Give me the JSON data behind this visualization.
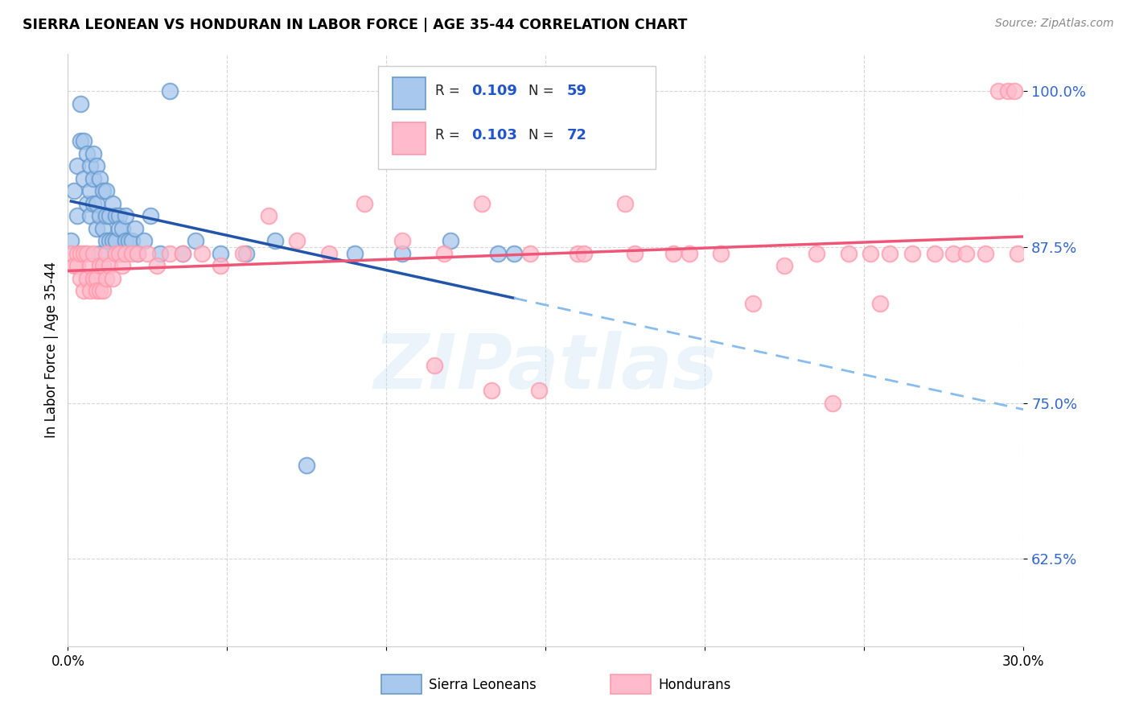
{
  "title": "SIERRA LEONEAN VS HONDURAN IN LABOR FORCE | AGE 35-44 CORRELATION CHART",
  "source": "Source: ZipAtlas.com",
  "ylabel": "In Labor Force | Age 35-44",
  "xlim": [
    0.0,
    0.3
  ],
  "ylim": [
    0.555,
    1.03
  ],
  "yticks": [
    0.625,
    0.75,
    0.875,
    1.0
  ],
  "ytick_labels": [
    "62.5%",
    "75.0%",
    "87.5%",
    "100.0%"
  ],
  "xticks": [
    0.0,
    0.05,
    0.1,
    0.15,
    0.2,
    0.25,
    0.3
  ],
  "xtick_labels": [
    "0.0%",
    "",
    "",
    "",
    "",
    "",
    "30.0%"
  ],
  "sl_R": 0.109,
  "sl_N": 59,
  "hn_R": 0.103,
  "hn_N": 72,
  "sl_color": "#6699CC",
  "hn_color": "#FF99AA",
  "sl_scatter_fill": "#A8C8EE",
  "hn_scatter_fill": "#FFBBCC",
  "trend_sl_color": "#2255AA",
  "trend_hn_color": "#EE5577",
  "dashed_color": "#88BBEE",
  "background": "#FFFFFF",
  "watermark": "ZIPatlas",
  "sl_x": [
    0.001,
    0.002,
    0.003,
    0.003,
    0.004,
    0.004,
    0.005,
    0.005,
    0.006,
    0.006,
    0.007,
    0.007,
    0.007,
    0.008,
    0.008,
    0.008,
    0.009,
    0.009,
    0.009,
    0.01,
    0.01,
    0.01,
    0.011,
    0.011,
    0.012,
    0.012,
    0.012,
    0.013,
    0.013,
    0.014,
    0.014,
    0.015,
    0.015,
    0.016,
    0.016,
    0.016,
    0.017,
    0.017,
    0.018,
    0.018,
    0.019,
    0.02,
    0.021,
    0.022,
    0.024,
    0.026,
    0.029,
    0.032,
    0.036,
    0.04,
    0.048,
    0.056,
    0.065,
    0.075,
    0.09,
    0.105,
    0.12,
    0.135,
    0.14
  ],
  "sl_y": [
    0.88,
    0.92,
    0.94,
    0.9,
    0.96,
    0.99,
    0.93,
    0.96,
    0.95,
    0.91,
    0.94,
    0.92,
    0.9,
    0.95,
    0.93,
    0.91,
    0.94,
    0.91,
    0.89,
    0.93,
    0.9,
    0.87,
    0.92,
    0.89,
    0.92,
    0.9,
    0.88,
    0.9,
    0.88,
    0.91,
    0.88,
    0.9,
    0.88,
    0.9,
    0.89,
    0.87,
    0.89,
    0.87,
    0.9,
    0.88,
    0.88,
    0.88,
    0.89,
    0.87,
    0.88,
    0.9,
    0.87,
    1.0,
    0.87,
    0.88,
    0.87,
    0.87,
    0.88,
    0.7,
    0.87,
    0.87,
    0.88,
    0.87,
    0.87
  ],
  "hn_x": [
    0.001,
    0.002,
    0.003,
    0.003,
    0.004,
    0.004,
    0.005,
    0.005,
    0.006,
    0.006,
    0.007,
    0.007,
    0.008,
    0.008,
    0.009,
    0.009,
    0.01,
    0.01,
    0.011,
    0.011,
    0.012,
    0.012,
    0.013,
    0.014,
    0.015,
    0.016,
    0.017,
    0.018,
    0.02,
    0.022,
    0.025,
    0.028,
    0.032,
    0.036,
    0.042,
    0.048,
    0.055,
    0.063,
    0.072,
    0.082,
    0.093,
    0.105,
    0.118,
    0.13,
    0.145,
    0.16,
    0.175,
    0.19,
    0.205,
    0.215,
    0.225,
    0.235,
    0.245,
    0.252,
    0.258,
    0.265,
    0.272,
    0.278,
    0.282,
    0.288,
    0.292,
    0.295,
    0.297,
    0.298,
    0.162,
    0.178,
    0.195,
    0.115,
    0.133,
    0.148,
    0.24,
    0.255
  ],
  "hn_y": [
    0.87,
    0.86,
    0.87,
    0.86,
    0.87,
    0.85,
    0.87,
    0.84,
    0.87,
    0.85,
    0.86,
    0.84,
    0.87,
    0.85,
    0.85,
    0.84,
    0.86,
    0.84,
    0.86,
    0.84,
    0.87,
    0.85,
    0.86,
    0.85,
    0.87,
    0.87,
    0.86,
    0.87,
    0.87,
    0.87,
    0.87,
    0.86,
    0.87,
    0.87,
    0.87,
    0.86,
    0.87,
    0.9,
    0.88,
    0.87,
    0.91,
    0.88,
    0.87,
    0.91,
    0.87,
    0.87,
    0.91,
    0.87,
    0.87,
    0.83,
    0.86,
    0.87,
    0.87,
    0.87,
    0.87,
    0.87,
    0.87,
    0.87,
    0.87,
    0.87,
    1.0,
    1.0,
    1.0,
    0.87,
    0.87,
    0.87,
    0.87,
    0.78,
    0.76,
    0.76,
    0.75,
    0.83
  ]
}
